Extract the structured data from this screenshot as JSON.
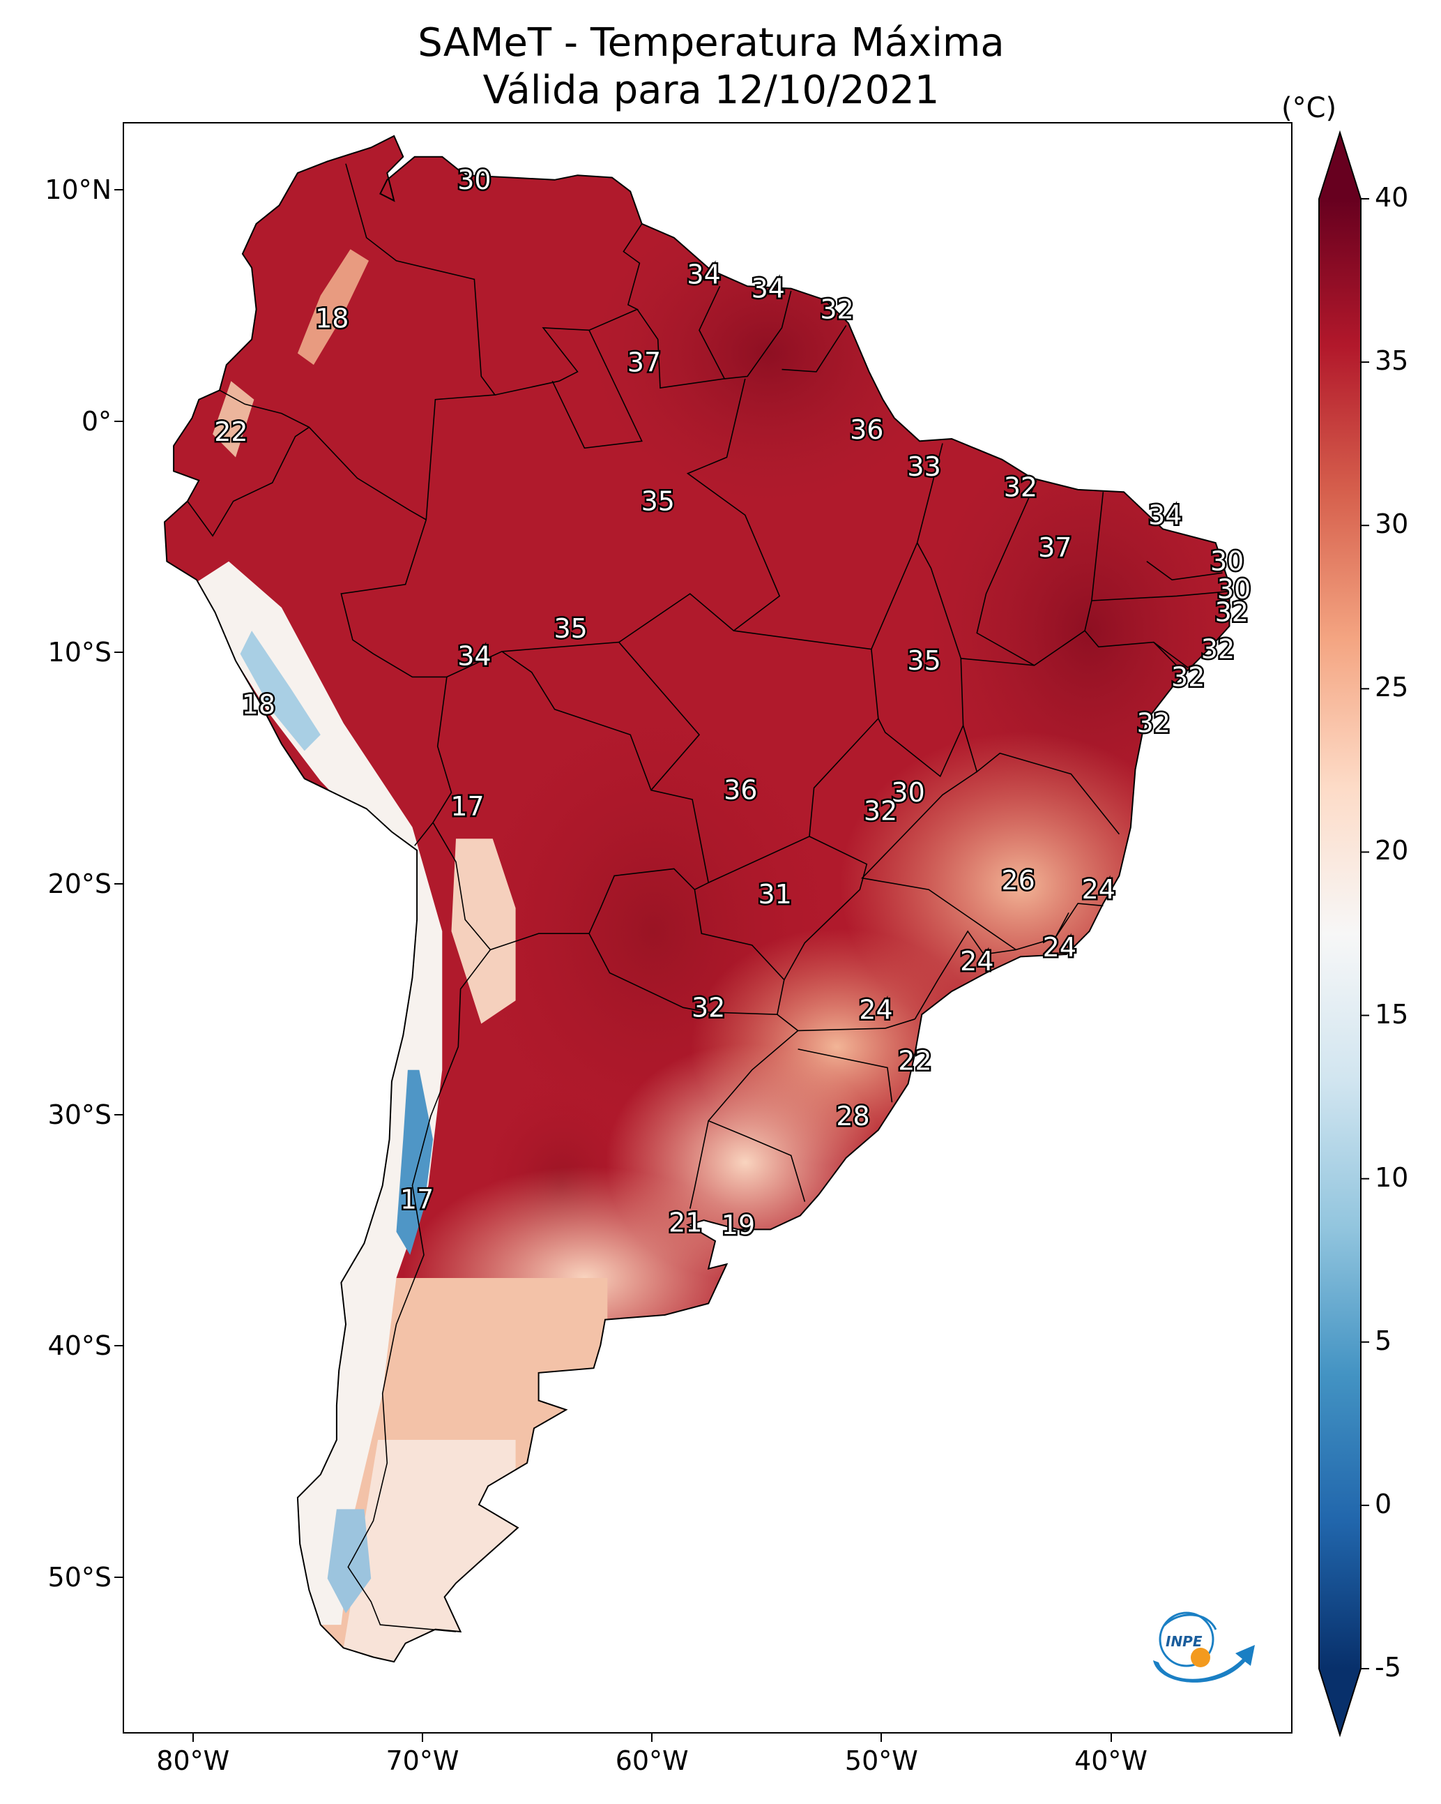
{
  "title": {
    "line1": "SAMeT - Temperatura Máxima",
    "line2": "Válida para 12/10/2021"
  },
  "lat_labels": [
    "10°N",
    "0°",
    "10°S",
    "20°S",
    "30°S",
    "40°S",
    "50°S"
  ],
  "lon_labels": [
    "80°W",
    "70°W",
    "60°W",
    "50°W",
    "40°W"
  ],
  "colorbar": {
    "unit": "(°C)",
    "ticks": [
      "40",
      "35",
      "30",
      "25",
      "20",
      "15",
      "10",
      "5",
      "0",
      "-5"
    ],
    "min": -5,
    "max": 40,
    "colors": [
      "#08306b",
      "#2166ac",
      "#4393c3",
      "#92c5de",
      "#d1e5f0",
      "#f7f7f7",
      "#fddbc7",
      "#f4a582",
      "#d6604d",
      "#b2182b",
      "#67001f"
    ]
  },
  "contour_labels": [
    {
      "text": "30",
      "lon": -67.8,
      "lat": 10.5
    },
    {
      "text": "34",
      "lon": -57.8,
      "lat": 6.4
    },
    {
      "text": "34",
      "lon": -55.0,
      "lat": 5.8
    },
    {
      "text": "32",
      "lon": -52.0,
      "lat": 4.9
    },
    {
      "text": "18",
      "lon": -74.0,
      "lat": 4.5
    },
    {
      "text": "37",
      "lon": -60.4,
      "lat": 2.6
    },
    {
      "text": "22",
      "lon": -78.4,
      "lat": -0.4
    },
    {
      "text": "36",
      "lon": -50.7,
      "lat": -0.3
    },
    {
      "text": "33",
      "lon": -48.2,
      "lat": -1.9
    },
    {
      "text": "35",
      "lon": -59.8,
      "lat": -3.4
    },
    {
      "text": "32",
      "lon": -44.0,
      "lat": -2.8
    },
    {
      "text": "34",
      "lon": -37.7,
      "lat": -4.0
    },
    {
      "text": "37",
      "lon": -42.5,
      "lat": -5.4
    },
    {
      "text": "30",
      "lon": -35.0,
      "lat": -6.0
    },
    {
      "text": "30",
      "lon": -34.7,
      "lat": -7.2
    },
    {
      "text": "32",
      "lon": -34.8,
      "lat": -8.2
    },
    {
      "text": "35",
      "lon": -63.6,
      "lat": -8.9
    },
    {
      "text": "34",
      "lon": -67.8,
      "lat": -10.1
    },
    {
      "text": "35",
      "lon": -48.2,
      "lat": -10.3
    },
    {
      "text": "32",
      "lon": -35.4,
      "lat": -9.8
    },
    {
      "text": "32",
      "lon": -36.7,
      "lat": -11.0
    },
    {
      "text": "18",
      "lon": -77.2,
      "lat": -12.2
    },
    {
      "text": "32",
      "lon": -38.2,
      "lat": -13.0
    },
    {
      "text": "36",
      "lon": -56.2,
      "lat": -15.9
    },
    {
      "text": "30",
      "lon": -48.9,
      "lat": -16.0
    },
    {
      "text": "17",
      "lon": -68.1,
      "lat": -16.6
    },
    {
      "text": "32",
      "lon": -50.1,
      "lat": -16.8
    },
    {
      "text": "26",
      "lon": -44.1,
      "lat": -19.8
    },
    {
      "text": "24",
      "lon": -40.6,
      "lat": -20.2
    },
    {
      "text": "31",
      "lon": -54.7,
      "lat": -20.4
    },
    {
      "text": "24",
      "lon": -42.3,
      "lat": -22.7
    },
    {
      "text": "24",
      "lon": -45.9,
      "lat": -23.3
    },
    {
      "text": "32",
      "lon": -57.6,
      "lat": -25.3
    },
    {
      "text": "24",
      "lon": -50.3,
      "lat": -25.4
    },
    {
      "text": "22",
      "lon": -48.6,
      "lat": -27.6
    },
    {
      "text": "28",
      "lon": -51.3,
      "lat": -30.0
    },
    {
      "text": "17",
      "lon": -70.3,
      "lat": -33.6
    },
    {
      "text": "21",
      "lon": -58.6,
      "lat": -34.6
    },
    {
      "text": "19",
      "lon": -56.3,
      "lat": -34.7
    }
  ],
  "logo": {
    "text": "INPE"
  }
}
